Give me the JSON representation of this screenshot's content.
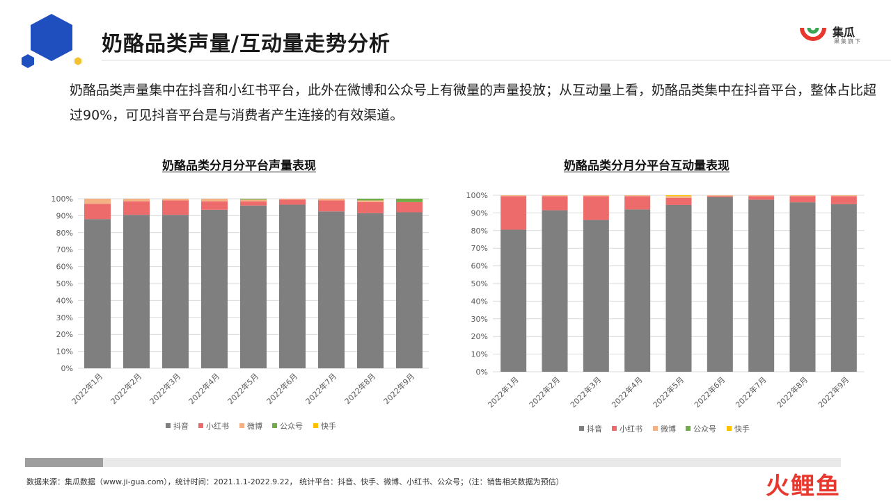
{
  "header": {
    "title": "奶酪品类声量/互动量走势分析",
    "brand_name": "集瓜",
    "brand_sub": "果集旗下"
  },
  "summary_text": "奶酪品类声量集中在抖音和小红书平台，此外在微博和公众号上有微量的声量投放；从互动量上看，奶酪品类集中在抖音平台，整体占比超过90%，可见抖音平台是与消费者产生连接的有效渠道。",
  "colors": {
    "accent_blue": "#1f4fbf",
    "accent_yellow": "#f2c230",
    "douyin": "#7f7f7f",
    "xiaohongshu": "#ee6b6b",
    "weibo": "#f4b183",
    "gongzhonghao": "#70ad47",
    "kuaishou": "#ffc000"
  },
  "chart_data": [
    {
      "type": "bar",
      "stacked": true,
      "title": "奶酪品类分月分平台声量表现",
      "categories": [
        "2022年1月",
        "2022年2月",
        "2022年3月",
        "2022年4月",
        "2022年5月",
        "2022年6月",
        "2022年7月",
        "2022年8月",
        "2022年9月"
      ],
      "y_ticks": [
        "0%",
        "10%",
        "20%",
        "30%",
        "40%",
        "50%",
        "60%",
        "70%",
        "80%",
        "90%",
        "100%"
      ],
      "ylim": [
        0,
        100
      ],
      "legend_position": "bottom",
      "series": [
        {
          "name": "抖音",
          "color": "#7f7f7f",
          "values": [
            88,
            90.5,
            90.5,
            93.5,
            96,
            96.5,
            92.5,
            91.5,
            92
          ]
        },
        {
          "name": "小红书",
          "color": "#ee6b6b",
          "values": [
            9,
            8,
            8.5,
            5,
            2.5,
            3,
            6.5,
            6.5,
            6
          ]
        },
        {
          "name": "微博",
          "color": "#f4b183",
          "values": [
            3,
            1.5,
            1,
            1.5,
            1,
            0.5,
            1,
            1,
            0
          ]
        },
        {
          "name": "公众号",
          "color": "#70ad47",
          "values": [
            0,
            0,
            0,
            0,
            0.5,
            0,
            0,
            1,
            2
          ]
        },
        {
          "name": "快手",
          "color": "#ffc000",
          "values": [
            0,
            0,
            0,
            0,
            0,
            0,
            0,
            0,
            0
          ]
        }
      ]
    },
    {
      "type": "bar",
      "stacked": true,
      "title": "奶酪品类分月分平台互动量表现",
      "categories": [
        "2022年1月",
        "2022年2月",
        "2022年3月",
        "2022年4月",
        "2022年5月",
        "2022年6月",
        "2022年7月",
        "2022年8月",
        "2022年9月"
      ],
      "y_ticks": [
        "0%",
        "10%",
        "20%",
        "30%",
        "40%",
        "50%",
        "60%",
        "70%",
        "80%",
        "90%",
        "100%"
      ],
      "ylim": [
        0,
        100
      ],
      "legend_position": "bottom",
      "series": [
        {
          "name": "抖音",
          "color": "#7f7f7f",
          "values": [
            80.5,
            91.5,
            86,
            92,
            94.5,
            99,
            97.5,
            96,
            95
          ]
        },
        {
          "name": "小红书",
          "color": "#ee6b6b",
          "values": [
            19,
            8,
            13.5,
            7.5,
            4,
            0.5,
            2,
            3.5,
            4.5
          ]
        },
        {
          "name": "微博",
          "color": "#f4b183",
          "values": [
            0.5,
            0.5,
            0.5,
            0.5,
            1,
            0.5,
            0.5,
            0.5,
            0.5
          ]
        },
        {
          "name": "公众号",
          "color": "#70ad47",
          "values": [
            0,
            0,
            0,
            0,
            0,
            0,
            0,
            0,
            0
          ]
        },
        {
          "name": "快手",
          "color": "#ffc000",
          "values": [
            0,
            0,
            0,
            0,
            0.5,
            0,
            0,
            0,
            0
          ]
        }
      ]
    }
  ],
  "footer": {
    "source_text": "数据来源：集瓜数据（www.ji-gua.com），统计时间：2021.1.1-2022.9.22， 统计平台：抖音、快手、微博、小红书、公众号；（注：销售相关数据为预估）",
    "watermark_logo_text": "火鲤鱼"
  }
}
